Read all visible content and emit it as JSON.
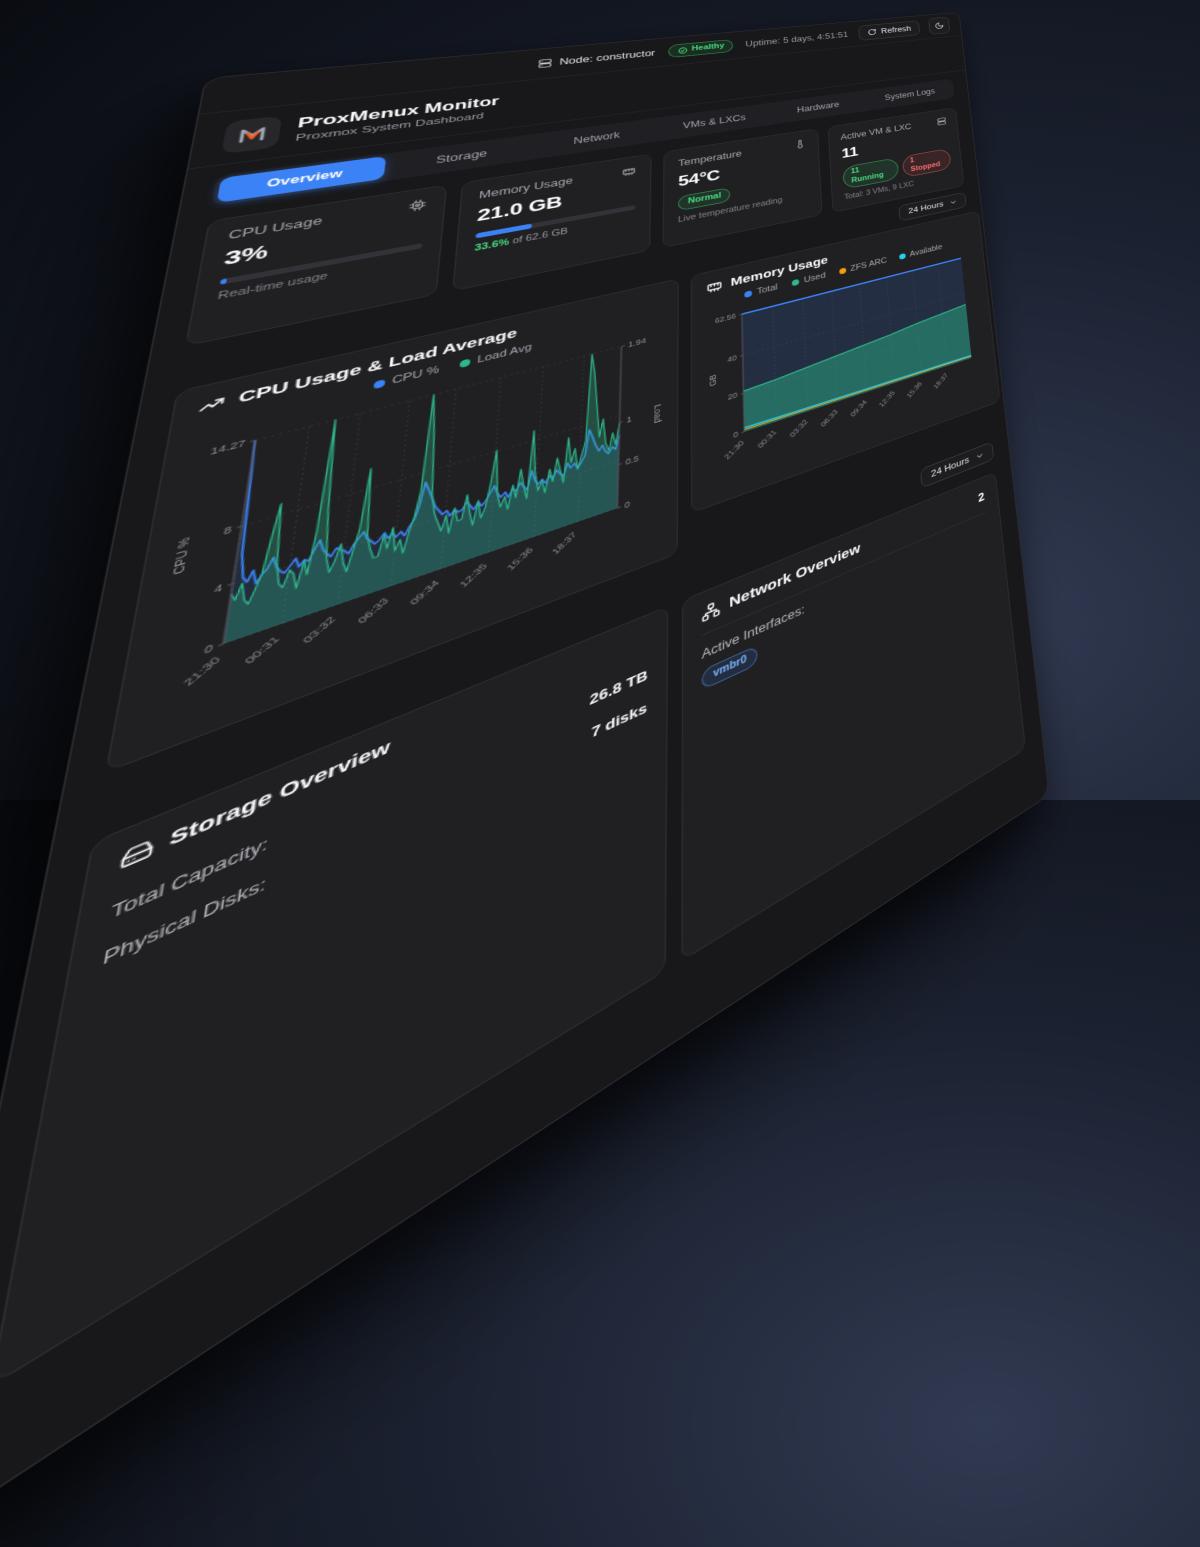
{
  "topbar": {
    "node_label": "Node: constructor",
    "health_badge": "Healthy",
    "uptime": "Uptime: 5 days, 4:51:51",
    "refresh_label": "Refresh"
  },
  "header": {
    "title": "ProxMenux Monitor",
    "subtitle": "Proxmox System Dashboard"
  },
  "tabs": [
    {
      "label": "Overview",
      "active": true
    },
    {
      "label": "Storage",
      "active": false
    },
    {
      "label": "Network",
      "active": false
    },
    {
      "label": "VMs & LXCs",
      "active": false
    },
    {
      "label": "Hardware",
      "active": false
    },
    {
      "label": "System Logs",
      "active": false
    }
  ],
  "time_range": {
    "label": "24 Hours"
  },
  "stats": {
    "cpu": {
      "title": "CPU Usage",
      "value": "3%",
      "percent": 3,
      "caption": "Real-time usage"
    },
    "memory": {
      "title": "Memory Usage",
      "value": "21.0 GB",
      "percent": 33.6,
      "caption_pct": "33.6%",
      "caption_rest": " of 62.6 GB"
    },
    "temperature": {
      "title": "Temperature",
      "value": "54°C",
      "badge": "Normal",
      "caption": "Live temperature reading"
    },
    "vms": {
      "title": "Active VM & LXC",
      "value": "11",
      "running_badge": "11 Running",
      "stopped_badge": "1 Stopped",
      "caption": "Total: 3 VMs, 9 LXC"
    }
  },
  "storage": {
    "title": "Storage Overview",
    "rows": [
      {
        "label": "Total Capacity:",
        "value": "26.8 TB"
      },
      {
        "label": "Physical Disks:",
        "value": "7 disks"
      }
    ]
  },
  "network": {
    "title": "Network Overview",
    "count": "2",
    "interfaces_label": "Active Interfaces:",
    "badges": [
      "vmbr0"
    ]
  },
  "colors": {
    "accent_blue": "#3b82f6",
    "green": "#2eb88a",
    "cyan": "#22d3ee",
    "orange": "#f59e0b",
    "red": "#ef4444"
  },
  "chart_data": [
    {
      "type": "line",
      "title": "CPU Usage & Load Average",
      "xlabel": "",
      "ylabel_left": "CPU %",
      "ylabel_right": "Load",
      "ylim_left": [
        0,
        14.27
      ],
      "ylim_right": [
        0,
        1.94
      ],
      "yticks_left": [
        0,
        4,
        8,
        14.27
      ],
      "yticks_right": [
        0,
        0.5,
        1,
        1.94
      ],
      "x_tick_labels": [
        "21:30",
        "00:31",
        "03:32",
        "06:33",
        "09:34",
        "12:35",
        "15:36",
        "18:37"
      ],
      "grid": true,
      "legend_position": "top",
      "legend": [
        {
          "label": "CPU %",
          "color": "#3b82f6"
        },
        {
          "label": "Load Avg",
          "color": "#2eb88a"
        }
      ],
      "series": [
        {
          "name": "CPU %",
          "axis": "left",
          "color": "#3b82f6",
          "values": [
            14.27,
            6.0,
            4.2,
            3.8,
            4.5,
            3.5,
            4.0,
            4.3,
            5.0,
            4.2,
            3.8,
            3.6,
            4.0,
            4.4,
            3.7,
            4.1,
            3.9,
            4.6,
            5.2,
            4.4,
            4.0,
            3.7,
            4.2,
            4.0,
            3.8,
            3.5,
            4.1,
            4.4,
            4.8,
            4.2,
            3.9,
            3.6,
            3.8,
            4.2,
            3.7,
            4.0,
            3.6,
            3.9,
            3.5,
            4.1,
            4.5,
            5.5,
            7.2,
            6.5,
            5.8,
            5.0,
            4.6,
            4.2,
            4.4,
            3.9,
            4.3,
            4.0,
            4.1,
            4.6,
            4.2,
            3.8,
            4.3,
            3.9,
            4.2,
            4.7,
            5.2,
            4.5,
            4.1,
            4.4,
            3.9,
            4.5,
            4.2,
            4.8,
            4.4,
            4.0,
            5.5,
            4.6,
            4.2,
            4.5,
            4.1,
            4.6,
            4.3,
            4.9,
            4.5,
            4.2,
            5.2,
            4.7,
            5.0,
            4.5,
            4.9,
            5.4,
            7.5,
            6.8,
            6.0,
            5.4,
            5.8,
            5.2,
            4.9,
            5.4,
            5.1,
            6.2
          ]
        },
        {
          "name": "Load Avg",
          "axis": "right",
          "color": "#2eb88a",
          "values": [
            0.45,
            0.38,
            0.52,
            0.35,
            0.3,
            0.42,
            0.55,
            0.9,
            1.2,
            0.6,
            0.4,
            0.35,
            0.5,
            0.45,
            0.3,
            0.55,
            0.4,
            0.8,
            1.94,
            1.0,
            0.5,
            0.35,
            0.45,
            0.6,
            0.4,
            0.3,
            0.5,
            0.7,
            1.3,
            0.6,
            0.45,
            0.35,
            0.35,
            0.55,
            0.4,
            0.6,
            0.35,
            0.45,
            0.3,
            0.5,
            0.65,
            0.9,
            1.94,
            1.5,
            0.8,
            0.6,
            0.5,
            0.4,
            0.55,
            0.35,
            0.6,
            0.45,
            0.45,
            0.7,
            0.5,
            0.35,
            0.6,
            0.4,
            0.5,
            0.75,
            1.1,
            0.6,
            0.45,
            0.55,
            0.4,
            0.65,
            0.5,
            0.8,
            0.6,
            0.45,
            1.2,
            0.7,
            0.5,
            0.6,
            0.45,
            0.7,
            0.55,
            0.8,
            0.65,
            0.5,
            1.0,
            0.7,
            0.85,
            0.6,
            0.75,
            0.9,
            1.94,
            1.7,
            1.3,
            0.9,
            1.1,
            0.8,
            0.7,
            0.9,
            0.75,
            1.0
          ]
        }
      ]
    },
    {
      "type": "area",
      "title": "Memory Usage",
      "xlabel": "",
      "ylabel_left": "GB",
      "ylim_left": [
        0,
        62.56
      ],
      "yticks_left": [
        0,
        20,
        40,
        62.56
      ],
      "x_tick_labels": [
        "21:30",
        "00:31",
        "03:32",
        "06:33",
        "09:34",
        "12:35",
        "15:36",
        "18:37"
      ],
      "grid": true,
      "legend_position": "top",
      "legend": [
        {
          "label": "Total",
          "color": "#3b82f6"
        },
        {
          "label": "Used",
          "color": "#2eb88a"
        },
        {
          "label": "ZFS ARC",
          "color": "#f59e0b"
        },
        {
          "label": "Available",
          "color": "#22d3ee"
        }
      ],
      "series": [
        {
          "name": "Total",
          "axis": "left",
          "color": "#3b82f6",
          "values": [
            62.56,
            62.56,
            62.56,
            62.56,
            62.56,
            62.56,
            62.56,
            62.56,
            62.56
          ]
        },
        {
          "name": "Used",
          "axis": "left",
          "color": "#2eb88a",
          "values": [
            21.0,
            22.0,
            23.5,
            25.0,
            26.5,
            28.0,
            30.0,
            31.5,
            33.0
          ]
        },
        {
          "name": "ZFS ARC",
          "axis": "left",
          "color": "#f59e0b",
          "values": [
            1.1,
            1.1,
            1.1,
            1.1,
            1.1,
            1.1,
            1.1,
            1.1,
            1.1
          ]
        },
        {
          "name": "Available",
          "axis": "left",
          "color": "#22d3ee",
          "values": [
            2.0,
            1.9,
            1.8,
            1.8,
            1.7,
            1.7,
            1.6,
            1.6,
            1.5
          ]
        }
      ]
    }
  ]
}
